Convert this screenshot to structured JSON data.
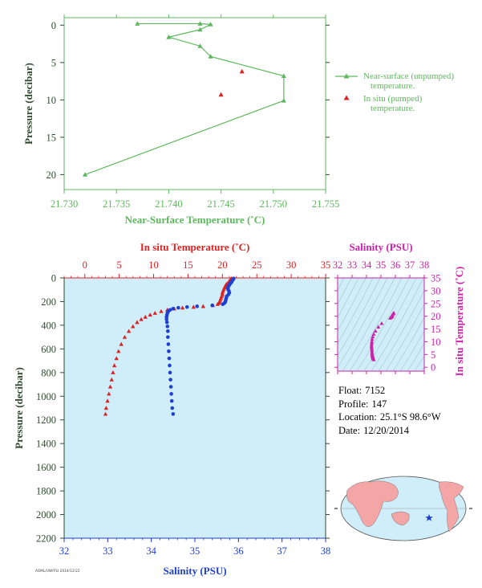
{
  "colors": {
    "green": "#5cb85c",
    "red": "#dd2222",
    "blue": "#1f3fd0",
    "magenta": "#cc22aa",
    "dark_green_text": "#2f4a2f",
    "pane_bg": "#cfeefa",
    "land": "#f4a6a6",
    "ocean": "#cfeefa"
  },
  "info": {
    "float_label": "Float:",
    "float": "7152",
    "profile_label": "Profile:",
    "profile": "147",
    "location_label": "Location:",
    "location": "25.1°S  98.6°W",
    "date_label": "Date:",
    "date": "12/20/2014"
  },
  "footer_text": "AOML/UW/FSI  2014/12/22",
  "chart_data": [
    {
      "type": "line",
      "id": "near-surface",
      "xlabel": "Near-Surface Temperature (˚C)",
      "ylabel": "Pressure (decibar)",
      "xlim": [
        21.73,
        21.755
      ],
      "ylim": [
        22,
        -1
      ],
      "xticks": [
        "21.730",
        "21.735",
        "21.740",
        "21.745",
        "21.750",
        "21.755"
      ],
      "xtick_values": [
        21.73,
        21.735,
        21.74,
        21.745,
        21.75,
        21.755
      ],
      "yticks": [
        "0",
        "5",
        "10",
        "15",
        "20"
      ],
      "ytick_values": [
        0,
        5,
        10,
        15,
        20
      ],
      "legend_position": "right",
      "series": [
        {
          "name": "Near-surface (unpumped) temperature.",
          "legend_lines": [
            "Near-surface (unpumped)",
            "temperature."
          ],
          "marker": "triangle",
          "color": "#5cb85c",
          "connected": true,
          "points": [
            [
              21.737,
              -0.2
            ],
            [
              21.743,
              -0.2
            ],
            [
              21.744,
              -0.1
            ],
            [
              21.743,
              0.6
            ],
            [
              21.74,
              1.6
            ],
            [
              21.743,
              2.8
            ],
            [
              21.744,
              4.2
            ],
            [
              21.751,
              6.8
            ],
            [
              21.751,
              10.1
            ],
            [
              21.732,
              20.0
            ]
          ]
        },
        {
          "name": "In situ (pumped) temperature.",
          "legend_lines": [
            "In situ (pumped)",
            "temperature."
          ],
          "marker": "triangle",
          "color": "#dd2222",
          "connected": false,
          "points": [
            [
              21.747,
              6.2
            ],
            [
              21.745,
              9.3
            ]
          ]
        }
      ]
    },
    {
      "type": "scatter",
      "id": "profile",
      "xlabel_top": "In situ Temperature (˚C)",
      "xlabel_bottom": "Salinity (PSU)",
      "ylabel": "Pressure (decibar)",
      "x_top_lim": [
        -3,
        35
      ],
      "x_top_ticks": [
        "0",
        "5",
        "10",
        "15",
        "20",
        "25",
        "30",
        "35"
      ],
      "x_top_tick_values": [
        0,
        5,
        10,
        15,
        20,
        25,
        30,
        35
      ],
      "x_bottom_lim": [
        32,
        38
      ],
      "x_bottom_ticks": [
        "32",
        "33",
        "34",
        "35",
        "36",
        "37",
        "38"
      ],
      "x_bottom_tick_values": [
        32,
        33,
        34,
        35,
        36,
        37,
        38
      ],
      "ylim": [
        0,
        2200
      ],
      "yticks": [
        "0",
        "200",
        "400",
        "600",
        "800",
        "1000",
        "1200",
        "1400",
        "1600",
        "1800",
        "2000",
        "2200"
      ],
      "ytick_values": [
        0,
        200,
        400,
        600,
        800,
        1000,
        1200,
        1400,
        1600,
        1800,
        2000,
        2200
      ],
      "temperature": {
        "marker": "triangle",
        "color": "#dd2222",
        "points": [
          [
            21.3,
            5
          ],
          [
            21.2,
            12
          ],
          [
            21.1,
            20
          ],
          [
            21.0,
            28
          ],
          [
            20.9,
            36
          ],
          [
            20.8,
            44
          ],
          [
            20.6,
            52
          ],
          [
            20.5,
            60
          ],
          [
            20.4,
            70
          ],
          [
            20.3,
            82
          ],
          [
            20.2,
            95
          ],
          [
            20.1,
            110
          ],
          [
            20.0,
            125
          ],
          [
            20.0,
            140
          ],
          [
            19.9,
            155
          ],
          [
            19.8,
            170
          ],
          [
            19.7,
            185
          ],
          [
            19.6,
            200
          ],
          [
            19.5,
            212
          ],
          [
            19.3,
            222
          ],
          [
            18.6,
            232
          ],
          [
            17.2,
            240
          ],
          [
            15.8,
            246
          ],
          [
            14.2,
            252
          ],
          [
            13.0,
            260
          ],
          [
            12.0,
            270
          ],
          [
            11.1,
            282
          ],
          [
            10.2,
            297
          ],
          [
            9.5,
            312
          ],
          [
            8.8,
            330
          ],
          [
            8.2,
            350
          ],
          [
            7.6,
            375
          ],
          [
            7.0,
            410
          ],
          [
            6.4,
            450
          ],
          [
            5.8,
            500
          ],
          [
            5.3,
            560
          ],
          [
            4.9,
            620
          ],
          [
            4.6,
            680
          ],
          [
            4.3,
            740
          ],
          [
            4.1,
            800
          ],
          [
            3.9,
            860
          ],
          [
            3.7,
            920
          ],
          [
            3.5,
            980
          ],
          [
            3.3,
            1040
          ],
          [
            3.1,
            1100
          ],
          [
            3.0,
            1150
          ]
        ]
      },
      "salinity": {
        "marker": "dot",
        "color": "#1f3fd0",
        "points": [
          [
            35.89,
            5
          ],
          [
            35.88,
            12
          ],
          [
            35.86,
            20
          ],
          [
            35.85,
            28
          ],
          [
            35.84,
            36
          ],
          [
            35.82,
            44
          ],
          [
            35.8,
            52
          ],
          [
            35.79,
            60
          ],
          [
            35.77,
            70
          ],
          [
            35.76,
            82
          ],
          [
            35.76,
            95
          ],
          [
            35.78,
            110
          ],
          [
            35.79,
            125
          ],
          [
            35.77,
            140
          ],
          [
            35.73,
            155
          ],
          [
            35.72,
            170
          ],
          [
            35.71,
            185
          ],
          [
            35.7,
            200
          ],
          [
            35.68,
            212
          ],
          [
            35.64,
            222
          ],
          [
            35.4,
            232
          ],
          [
            35.05,
            240
          ],
          [
            34.82,
            246
          ],
          [
            34.62,
            252
          ],
          [
            34.5,
            260
          ],
          [
            34.43,
            270
          ],
          [
            34.39,
            282
          ],
          [
            34.37,
            297
          ],
          [
            34.36,
            312
          ],
          [
            34.35,
            330
          ],
          [
            34.35,
            350
          ],
          [
            34.36,
            375
          ],
          [
            34.37,
            410
          ],
          [
            34.38,
            450
          ],
          [
            34.38,
            500
          ],
          [
            34.39,
            560
          ],
          [
            34.4,
            620
          ],
          [
            34.41,
            680
          ],
          [
            34.42,
            740
          ],
          [
            34.43,
            800
          ],
          [
            34.44,
            860
          ],
          [
            34.45,
            920
          ],
          [
            34.46,
            980
          ],
          [
            34.47,
            1040
          ],
          [
            34.48,
            1100
          ],
          [
            34.5,
            1150
          ]
        ]
      }
    },
    {
      "type": "scatter",
      "id": "ts-diagram",
      "xlabel": "Salinity (PSU)",
      "ylabel": "In situ Temperature (˚C)",
      "xlim": [
        32,
        38
      ],
      "xticks": [
        "32",
        "33",
        "34",
        "35",
        "36",
        "37",
        "38"
      ],
      "xtick_values": [
        32,
        33,
        34,
        35,
        36,
        37,
        38
      ],
      "ylim": [
        -1.5,
        35
      ],
      "yticks": [
        "0",
        "5",
        "10",
        "15",
        "20",
        "25",
        "30",
        "35"
      ],
      "ytick_values": [
        0,
        5,
        10,
        15,
        20,
        25,
        30,
        35
      ],
      "marker": "triangle",
      "color": "#cc22aa",
      "points": [
        [
          35.89,
          21.3
        ],
        [
          35.85,
          21.0
        ],
        [
          35.8,
          20.6
        ],
        [
          35.76,
          20.2
        ],
        [
          35.77,
          19.9
        ],
        [
          35.71,
          19.6
        ],
        [
          35.64,
          19.3
        ],
        [
          35.05,
          17.2
        ],
        [
          34.82,
          15.8
        ],
        [
          34.62,
          14.2
        ],
        [
          34.5,
          13.0
        ],
        [
          34.43,
          12.0
        ],
        [
          34.39,
          11.1
        ],
        [
          34.37,
          10.2
        ],
        [
          34.36,
          9.5
        ],
        [
          34.35,
          8.8
        ],
        [
          34.35,
          8.2
        ],
        [
          34.36,
          7.6
        ],
        [
          34.37,
          7.0
        ],
        [
          34.38,
          6.4
        ],
        [
          34.38,
          5.8
        ],
        [
          34.39,
          5.3
        ],
        [
          34.4,
          4.9
        ],
        [
          34.41,
          4.6
        ],
        [
          34.42,
          4.3
        ],
        [
          34.43,
          4.1
        ],
        [
          34.44,
          3.9
        ],
        [
          34.45,
          3.7
        ],
        [
          34.46,
          3.5
        ],
        [
          34.48,
          3.3
        ],
        [
          34.5,
          3.0
        ]
      ]
    }
  ]
}
